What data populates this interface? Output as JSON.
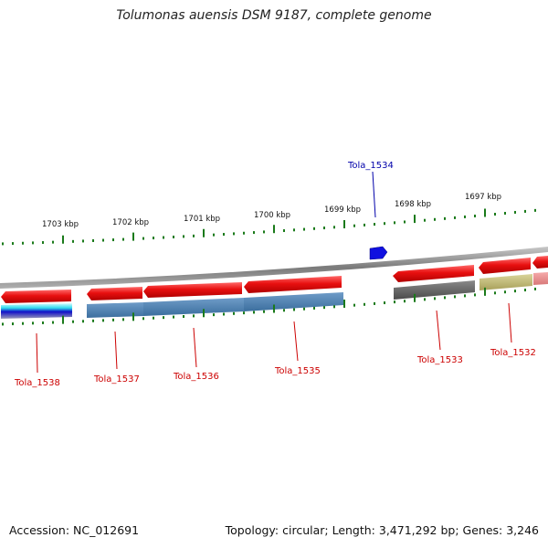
{
  "title": "Tolumonas auensis DSM 9187, complete genome",
  "footer": {
    "accession": "Accession: NC_012691",
    "summary": "Topology: circular; Length: 3,471,292 bp; Genes: 3,246"
  },
  "colors": {
    "forward_gene": "#e01010",
    "selected_gene": "#1010e0",
    "label_red": "#cc0000",
    "label_blue": "#0000aa",
    "tick_green": "#1a7a1a",
    "backbone": "#808080"
  },
  "scale_labels": [
    "1703 kbp",
    "1702 kbp",
    "1701 kbp",
    "1700 kbp",
    "1699 kbp",
    "1698 kbp",
    "1697 kbp"
  ],
  "gene_labels": [
    {
      "name": "Tola_1534",
      "color": "blue"
    },
    {
      "name": "Tola_1538",
      "color": "red"
    },
    {
      "name": "Tola_1537",
      "color": "red"
    },
    {
      "name": "Tola_1536",
      "color": "red"
    },
    {
      "name": "Tola_1535",
      "color": "red"
    },
    {
      "name": "Tola_1533",
      "color": "red"
    },
    {
      "name": "Tola_1532",
      "color": "red"
    }
  ]
}
